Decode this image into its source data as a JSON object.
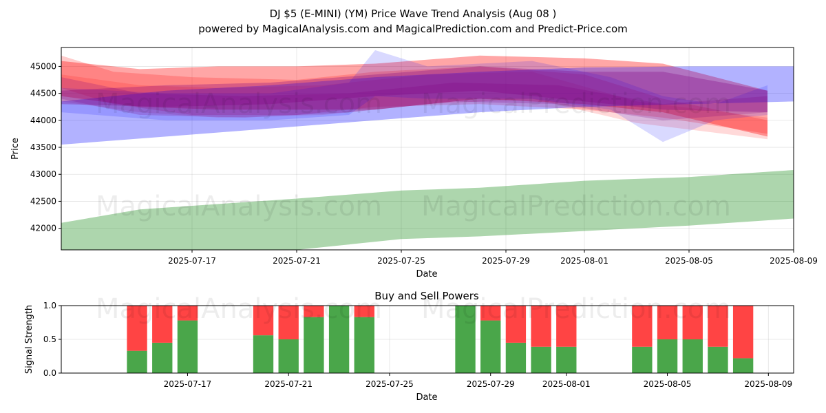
{
  "title": "DJ $5 (E-MINI) (YM) Price Wave Trend Analysis (Aug 08 )",
  "subtitle": "powered by MagicalAnalysis.com and MagicalPrediction.com and Predict-Price.com",
  "watermarks": [
    "MagicalAnalysis.com",
    "MagicalPrediction.com"
  ],
  "colors": {
    "red": "#ff0000",
    "blue": "#0000ff",
    "green": "#008000",
    "purple": "#800080",
    "buy": "#4aa64a",
    "sell": "#ff4444"
  },
  "chart_data": [
    {
      "type": "area",
      "title": "",
      "xlabel": "Date",
      "ylabel": "Price",
      "xlim": [
        "2025-07-12",
        "2025-08-09"
      ],
      "ylim": [
        41600,
        45350
      ],
      "x_ticks": [
        "2025-07-17",
        "2025-07-21",
        "2025-07-25",
        "2025-07-29",
        "2025-08-01",
        "2025-08-05",
        "2025-08-09"
      ],
      "y_ticks": [
        42000,
        42500,
        43000,
        43500,
        44000,
        44500,
        45000
      ],
      "grid": true,
      "bands": [
        {
          "color": "red",
          "opacity": 0.35,
          "x": [
            "2025-07-12",
            "2025-07-15",
            "2025-07-18",
            "2025-07-21",
            "2025-07-24",
            "2025-07-28",
            "2025-08-01",
            "2025-08-04",
            "2025-08-08"
          ],
          "upper": [
            45100,
            44950,
            45000,
            45000,
            45050,
            45200,
            45150,
            45050,
            44550
          ],
          "lower": [
            44450,
            44250,
            44200,
            44200,
            44200,
            44400,
            44300,
            44150,
            43700
          ]
        },
        {
          "color": "red",
          "opacity": 0.2,
          "x": [
            "2025-07-12",
            "2025-07-14",
            "2025-07-17",
            "2025-07-21",
            "2025-07-24",
            "2025-07-28",
            "2025-08-01",
            "2025-08-04",
            "2025-08-08"
          ],
          "upper": [
            45200,
            44900,
            44800,
            44750,
            44900,
            45000,
            44850,
            44400,
            44000
          ],
          "lower": [
            44600,
            44300,
            44100,
            44100,
            44250,
            44300,
            44200,
            44050,
            43750
          ]
        },
        {
          "color": "red",
          "opacity": 0.15,
          "x": [
            "2025-07-12",
            "2025-07-15",
            "2025-07-18",
            "2025-07-22",
            "2025-07-26",
            "2025-07-30",
            "2025-08-03",
            "2025-08-08"
          ],
          "upper": [
            44850,
            44650,
            44600,
            44650,
            44850,
            44900,
            44350,
            44050
          ],
          "lower": [
            44350,
            44150,
            44050,
            44100,
            44300,
            44400,
            43950,
            43650
          ]
        },
        {
          "color": "blue",
          "opacity": 0.3,
          "x": [
            "2025-07-12",
            "2025-07-16",
            "2025-07-20",
            "2025-07-24",
            "2025-07-28",
            "2025-08-01",
            "2025-08-05",
            "2025-08-09"
          ],
          "upper": [
            44350,
            44550,
            44650,
            44800,
            44900,
            44980,
            45000,
            45000
          ],
          "lower": [
            43550,
            43700,
            43850,
            44000,
            44150,
            44250,
            44300,
            44350
          ]
        },
        {
          "color": "blue",
          "opacity": 0.15,
          "x": [
            "2025-07-12",
            "2025-07-16",
            "2025-07-20",
            "2025-07-23",
            "2025-07-24",
            "2025-07-26",
            "2025-07-30",
            "2025-08-02",
            "2025-08-04",
            "2025-08-06",
            "2025-08-08"
          ],
          "upper": [
            44600,
            44500,
            44500,
            44700,
            45300,
            45000,
            45100,
            44800,
            44450,
            44300,
            44650
          ],
          "lower": [
            44150,
            44000,
            44000,
            44100,
            44450,
            44400,
            44400,
            44200,
            43600,
            44000,
            44100
          ]
        },
        {
          "color": "purple",
          "opacity": 0.3,
          "x": [
            "2025-07-12",
            "2025-07-16",
            "2025-07-20",
            "2025-07-24",
            "2025-07-28",
            "2025-08-01",
            "2025-08-04",
            "2025-08-08"
          ],
          "upper": [
            44550,
            44650,
            44700,
            44850,
            45000,
            44900,
            44900,
            44550
          ],
          "lower": [
            44300,
            44250,
            44300,
            44450,
            44550,
            44350,
            44200,
            44150
          ]
        },
        {
          "color": "purple",
          "opacity": 0.22,
          "x": [
            "2025-07-12",
            "2025-07-15",
            "2025-07-19",
            "2025-07-23",
            "2025-07-27",
            "2025-07-31",
            "2025-08-04",
            "2025-08-08"
          ],
          "upper": [
            44800,
            44500,
            44450,
            44500,
            44700,
            44650,
            44300,
            44450
          ],
          "lower": [
            44400,
            44100,
            44050,
            44150,
            44350,
            44300,
            44000,
            44150
          ]
        },
        {
          "color": "green",
          "opacity": 0.32,
          "x": [
            "2025-07-12",
            "2025-07-15",
            "2025-07-18",
            "2025-07-21",
            "2025-07-25",
            "2025-07-28",
            "2025-08-01",
            "2025-08-05",
            "2025-08-09"
          ],
          "upper": [
            42100,
            42350,
            42450,
            42550,
            42700,
            42750,
            42880,
            42950,
            43080
          ],
          "lower": [
            41500,
            41550,
            41550,
            41600,
            41800,
            41850,
            41950,
            42050,
            42180
          ]
        }
      ]
    },
    {
      "type": "bar",
      "title": "Buy and Sell Powers",
      "xlabel": "Date",
      "ylabel": "Signal Strength",
      "ylim": [
        0,
        1
      ],
      "y_ticks": [
        "0.0",
        "0.5",
        "1.0"
      ],
      "x_ticks": [
        "2025-07-17",
        "2025-07-21",
        "2025-07-25",
        "2025-07-29",
        "2025-08-01",
        "2025-08-05",
        "2025-08-09"
      ],
      "categories": [
        "2025-07-15",
        "2025-07-16",
        "2025-07-17",
        "2025-07-20",
        "2025-07-21",
        "2025-07-22",
        "2025-07-23",
        "2025-07-24",
        "2025-07-28",
        "2025-07-29",
        "2025-07-30",
        "2025-07-31",
        "2025-08-01",
        "2025-08-04",
        "2025-08-05",
        "2025-08-06",
        "2025-08-07",
        "2025-08-08"
      ],
      "series": [
        {
          "name": "Buy",
          "values": [
            0.33,
            0.45,
            0.78,
            0.56,
            0.5,
            0.83,
            1.0,
            0.83,
            1.0,
            0.78,
            0.45,
            0.39,
            0.39,
            0.39,
            0.5,
            0.5,
            0.39,
            0.22
          ]
        },
        {
          "name": "Sell",
          "values": [
            0.67,
            0.55,
            0.22,
            0.44,
            0.5,
            0.17,
            0.0,
            0.17,
            0.0,
            0.22,
            0.55,
            0.61,
            0.61,
            0.61,
            0.5,
            0.5,
            0.61,
            0.78
          ]
        }
      ]
    }
  ]
}
